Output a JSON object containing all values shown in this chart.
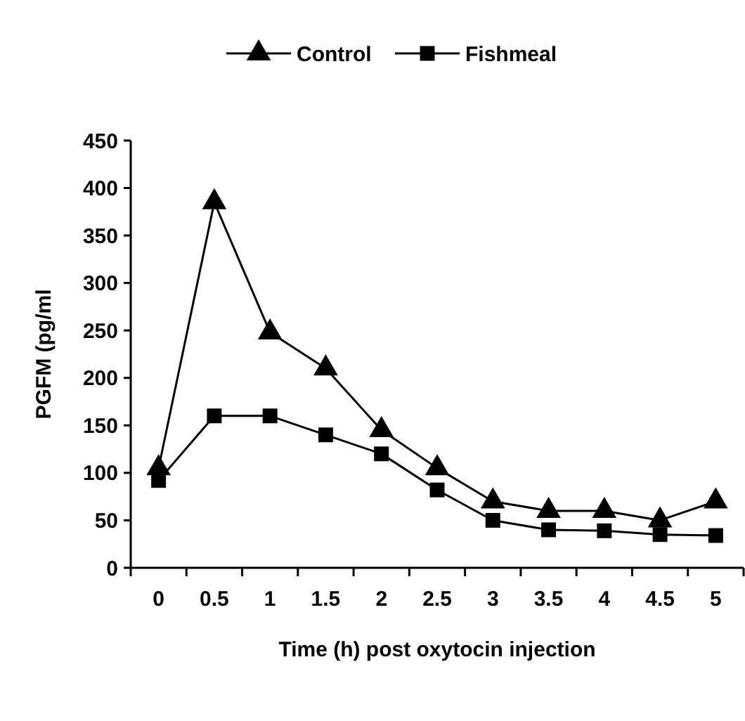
{
  "chart_data": {
    "type": "line",
    "xlabel": "Time (h) post oxytocin injection",
    "ylabel": "PGFM  (pg/ml",
    "categories": [
      "0",
      "0.5",
      "1",
      "1.5",
      "2",
      "2.5",
      "3",
      "3.5",
      "4",
      "4.5",
      "5"
    ],
    "series": [
      {
        "name": "Control",
        "color": "#000000",
        "marker": "triangle",
        "values": [
          105,
          385,
          248,
          210,
          145,
          105,
          70,
          60,
          60,
          50,
          70
        ]
      },
      {
        "name": "Fishmeal",
        "color": "#000000",
        "marker": "square",
        "values": [
          92,
          160,
          160,
          140,
          120,
          82,
          50,
          40,
          39,
          35,
          34
        ]
      }
    ],
    "ylim": [
      0,
      450
    ],
    "yticks": [
      0,
      50,
      100,
      150,
      200,
      250,
      300,
      350,
      400,
      450
    ],
    "grid": false,
    "legend": "top",
    "line_style": "solid"
  }
}
